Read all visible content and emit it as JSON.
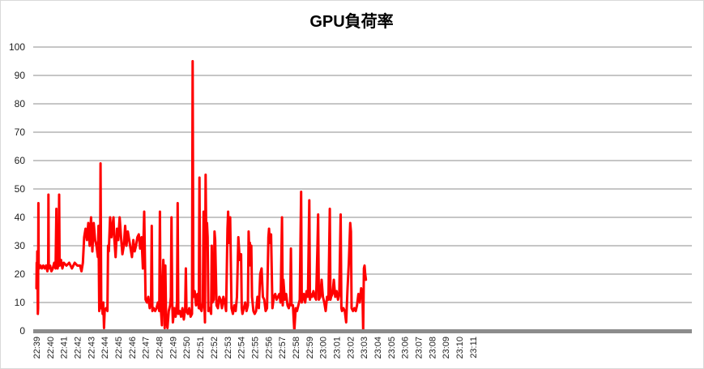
{
  "chart_data": {
    "type": "line",
    "title": "GPU負荷率",
    "xlabel": "",
    "ylabel": "",
    "ylim": [
      0,
      100
    ],
    "yticks": [
      0,
      10,
      20,
      30,
      40,
      50,
      60,
      70,
      80,
      90,
      100
    ],
    "grid": true,
    "legend": "none",
    "x_tick_labels": [
      "22:39",
      "22:40",
      "22:41",
      "22:42",
      "22:43",
      "22:44",
      "22:45",
      "22:46",
      "22:47",
      "22:48",
      "22:49",
      "22:50",
      "22:51",
      "22:52",
      "22:53",
      "22:54",
      "22:55",
      "22:56",
      "22:57",
      "22:58",
      "22:59",
      "23:00",
      "23:01",
      "23:02",
      "23:03",
      "23:04",
      "23:05",
      "23:06",
      "23:07",
      "23:08",
      "23:09",
      "23:10",
      "23:11"
    ],
    "series": [
      {
        "color": "#ff0000",
        "points": [
          [
            0.0,
            15
          ],
          [
            0.02,
            24
          ],
          [
            0.04,
            19
          ],
          [
            0.06,
            28
          ],
          [
            0.08,
            22
          ],
          [
            0.1,
            6
          ],
          [
            0.12,
            8
          ],
          [
            0.14,
            45
          ],
          [
            0.16,
            24
          ],
          [
            0.2,
            22
          ],
          [
            0.3,
            23
          ],
          [
            0.4,
            22
          ],
          [
            0.5,
            23
          ],
          [
            0.6,
            22
          ],
          [
            0.7,
            23
          ],
          [
            0.8,
            21
          ],
          [
            0.86,
            24
          ],
          [
            0.88,
            48
          ],
          [
            0.9,
            22
          ],
          [
            1.0,
            23
          ],
          [
            1.1,
            21
          ],
          [
            1.2,
            22
          ],
          [
            1.3,
            24
          ],
          [
            1.4,
            22
          ],
          [
            1.46,
            43
          ],
          [
            1.48,
            24
          ],
          [
            1.55,
            22
          ],
          [
            1.62,
            24
          ],
          [
            1.66,
            48
          ],
          [
            1.7,
            23
          ],
          [
            1.8,
            25
          ],
          [
            1.9,
            22
          ],
          [
            2.0,
            24
          ],
          [
            2.2,
            23
          ],
          [
            2.4,
            24
          ],
          [
            2.6,
            22
          ],
          [
            2.8,
            24
          ],
          [
            3.0,
            23
          ],
          [
            3.2,
            23
          ],
          [
            3.3,
            21
          ],
          [
            3.4,
            24
          ],
          [
            3.5,
            33
          ],
          [
            3.6,
            36
          ],
          [
            3.7,
            32
          ],
          [
            3.8,
            38
          ],
          [
            3.9,
            30
          ],
          [
            4.0,
            40
          ],
          [
            4.1,
            28
          ],
          [
            4.2,
            38
          ],
          [
            4.3,
            32
          ],
          [
            4.4,
            30
          ],
          [
            4.5,
            26
          ],
          [
            4.55,
            37
          ],
          [
            4.6,
            7
          ],
          [
            4.65,
            9
          ],
          [
            4.7,
            59
          ],
          [
            4.75,
            8
          ],
          [
            4.8,
            10
          ],
          [
            4.85,
            6
          ],
          [
            4.9,
            10
          ],
          [
            4.95,
            1
          ],
          [
            5.0,
            7
          ],
          [
            5.1,
            8
          ],
          [
            5.2,
            7
          ],
          [
            5.25,
            30
          ],
          [
            5.3,
            28
          ],
          [
            5.4,
            40
          ],
          [
            5.5,
            33
          ],
          [
            5.6,
            38
          ],
          [
            5.65,
            40
          ],
          [
            5.7,
            33
          ],
          [
            5.8,
            26
          ],
          [
            5.9,
            36
          ],
          [
            6.0,
            32
          ],
          [
            6.1,
            40
          ],
          [
            6.2,
            33
          ],
          [
            6.3,
            27
          ],
          [
            6.4,
            30
          ],
          [
            6.5,
            37
          ],
          [
            6.6,
            30
          ],
          [
            6.7,
            35
          ],
          [
            6.8,
            32
          ],
          [
            6.9,
            29
          ],
          [
            7.0,
            26
          ],
          [
            7.1,
            32
          ],
          [
            7.2,
            28
          ],
          [
            7.3,
            30
          ],
          [
            7.4,
            33
          ],
          [
            7.5,
            34
          ],
          [
            7.6,
            29
          ],
          [
            7.7,
            33
          ],
          [
            7.8,
            22
          ],
          [
            7.85,
            33
          ],
          [
            7.9,
            42
          ],
          [
            8.0,
            11
          ],
          [
            8.1,
            10
          ],
          [
            8.2,
            12
          ],
          [
            8.3,
            8
          ],
          [
            8.4,
            11
          ],
          [
            8.45,
            37
          ],
          [
            8.5,
            7
          ],
          [
            8.6,
            8
          ],
          [
            8.7,
            7
          ],
          [
            8.8,
            8
          ],
          [
            8.9,
            10
          ],
          [
            9.0,
            7
          ],
          [
            9.05,
            42
          ],
          [
            9.1,
            9
          ],
          [
            9.2,
            2
          ],
          [
            9.25,
            18
          ],
          [
            9.3,
            25
          ],
          [
            9.35,
            20
          ],
          [
            9.4,
            1
          ],
          [
            9.45,
            23
          ],
          [
            9.5,
            5
          ],
          [
            9.6,
            1
          ],
          [
            9.7,
            7
          ],
          [
            9.8,
            9
          ],
          [
            9.85,
            12
          ],
          [
            9.9,
            40
          ],
          [
            9.95,
            10
          ],
          [
            10.0,
            3
          ],
          [
            10.1,
            8
          ],
          [
            10.2,
            5
          ],
          [
            10.3,
            10
          ],
          [
            10.35,
            45
          ],
          [
            10.4,
            6
          ],
          [
            10.5,
            7
          ],
          [
            10.6,
            5
          ],
          [
            10.7,
            8
          ],
          [
            10.8,
            4
          ],
          [
            10.9,
            8
          ],
          [
            10.95,
            22
          ],
          [
            11.0,
            7
          ],
          [
            11.1,
            6
          ],
          [
            11.2,
            8
          ],
          [
            11.3,
            5
          ],
          [
            11.4,
            6
          ],
          [
            11.45,
            95
          ],
          [
            11.5,
            12
          ],
          [
            11.6,
            14
          ],
          [
            11.7,
            9
          ],
          [
            11.8,
            13
          ],
          [
            11.9,
            8
          ],
          [
            11.95,
            54
          ],
          [
            12.0,
            8
          ],
          [
            12.1,
            7
          ],
          [
            12.2,
            10
          ],
          [
            12.25,
            42
          ],
          [
            12.3,
            12
          ],
          [
            12.35,
            3
          ],
          [
            12.4,
            55
          ],
          [
            12.45,
            30
          ],
          [
            12.5,
            38
          ],
          [
            12.55,
            33
          ],
          [
            12.6,
            7
          ],
          [
            12.7,
            8
          ],
          [
            12.8,
            6
          ],
          [
            12.85,
            30
          ],
          [
            12.9,
            10
          ],
          [
            13.0,
            11
          ],
          [
            13.05,
            35
          ],
          [
            13.1,
            32
          ],
          [
            13.2,
            9
          ],
          [
            13.3,
            8
          ],
          [
            13.4,
            12
          ],
          [
            13.5,
            11
          ],
          [
            13.6,
            8
          ],
          [
            13.7,
            12
          ],
          [
            13.8,
            10
          ],
          [
            13.9,
            7
          ],
          [
            14.0,
            36
          ],
          [
            14.05,
            42
          ],
          [
            14.1,
            31
          ],
          [
            14.2,
            40
          ],
          [
            14.3,
            8
          ],
          [
            14.4,
            6
          ],
          [
            14.5,
            9
          ],
          [
            14.6,
            7
          ],
          [
            14.7,
            12
          ],
          [
            14.8,
            33
          ],
          [
            14.9,
            25
          ],
          [
            15.0,
            27
          ],
          [
            15.05,
            8
          ],
          [
            15.1,
            6
          ],
          [
            15.2,
            8
          ],
          [
            15.3,
            10
          ],
          [
            15.4,
            7
          ],
          [
            15.5,
            9
          ],
          [
            15.55,
            35
          ],
          [
            15.6,
            28
          ],
          [
            15.65,
            31
          ],
          [
            15.7,
            23
          ],
          [
            15.75,
            30
          ],
          [
            15.8,
            12
          ],
          [
            15.9,
            7
          ],
          [
            16.0,
            6
          ],
          [
            16.1,
            7
          ],
          [
            16.2,
            12
          ],
          [
            16.3,
            8
          ],
          [
            16.4,
            20
          ],
          [
            16.5,
            22
          ],
          [
            16.6,
            12
          ],
          [
            16.7,
            11
          ],
          [
            16.8,
            7
          ],
          [
            16.9,
            8
          ],
          [
            17.0,
            33
          ],
          [
            17.05,
            36
          ],
          [
            17.1,
            31
          ],
          [
            17.2,
            34
          ],
          [
            17.3,
            8
          ],
          [
            17.4,
            12
          ],
          [
            17.5,
            13
          ],
          [
            17.6,
            11
          ],
          [
            17.7,
            12
          ],
          [
            17.8,
            13
          ],
          [
            17.9,
            10
          ],
          [
            18.0,
            40
          ],
          [
            18.05,
            9
          ],
          [
            18.1,
            18
          ],
          [
            18.2,
            11
          ],
          [
            18.3,
            13
          ],
          [
            18.4,
            9
          ],
          [
            18.5,
            8
          ],
          [
            18.6,
            10
          ],
          [
            18.65,
            29
          ],
          [
            18.7,
            9
          ],
          [
            18.8,
            9
          ],
          [
            18.9,
            0
          ],
          [
            19.0,
            8
          ],
          [
            19.1,
            7
          ],
          [
            19.2,
            9
          ],
          [
            19.3,
            11
          ],
          [
            19.4,
            49
          ],
          [
            19.45,
            10
          ],
          [
            19.5,
            11
          ],
          [
            19.6,
            13
          ],
          [
            19.7,
            10
          ],
          [
            19.8,
            14
          ],
          [
            19.9,
            12
          ],
          [
            20.0,
            46
          ],
          [
            20.05,
            11
          ],
          [
            20.1,
            13
          ],
          [
            20.2,
            12
          ],
          [
            20.3,
            14
          ],
          [
            20.4,
            12
          ],
          [
            20.5,
            11
          ],
          [
            20.6,
            30
          ],
          [
            20.65,
            41
          ],
          [
            20.7,
            11
          ],
          [
            20.8,
            12
          ],
          [
            20.9,
            18
          ],
          [
            21.0,
            12
          ],
          [
            21.1,
            10
          ],
          [
            21.2,
            7
          ],
          [
            21.3,
            12
          ],
          [
            21.4,
            11
          ],
          [
            21.5,
            43
          ],
          [
            21.55,
            11
          ],
          [
            21.6,
            12
          ],
          [
            21.7,
            13
          ],
          [
            21.8,
            18
          ],
          [
            21.9,
            12
          ],
          [
            22.0,
            14
          ],
          [
            22.1,
            11
          ],
          [
            22.2,
            13
          ],
          [
            22.3,
            41
          ],
          [
            22.35,
            8
          ],
          [
            22.4,
            7
          ],
          [
            22.5,
            8
          ],
          [
            22.6,
            7
          ],
          [
            22.7,
            3
          ],
          [
            22.8,
            15
          ],
          [
            22.9,
            24
          ],
          [
            23.0,
            38
          ],
          [
            23.05,
            35
          ],
          [
            23.1,
            8
          ],
          [
            23.2,
            7
          ],
          [
            23.3,
            8
          ],
          [
            23.4,
            7
          ],
          [
            23.5,
            9
          ],
          [
            23.6,
            13
          ],
          [
            23.7,
            10
          ],
          [
            23.8,
            15
          ],
          [
            23.9,
            12
          ],
          [
            23.95,
            0
          ],
          [
            24.0,
            22
          ],
          [
            24.05,
            23
          ],
          [
            24.1,
            20
          ],
          [
            24.15,
            18
          ]
        ]
      }
    ]
  }
}
